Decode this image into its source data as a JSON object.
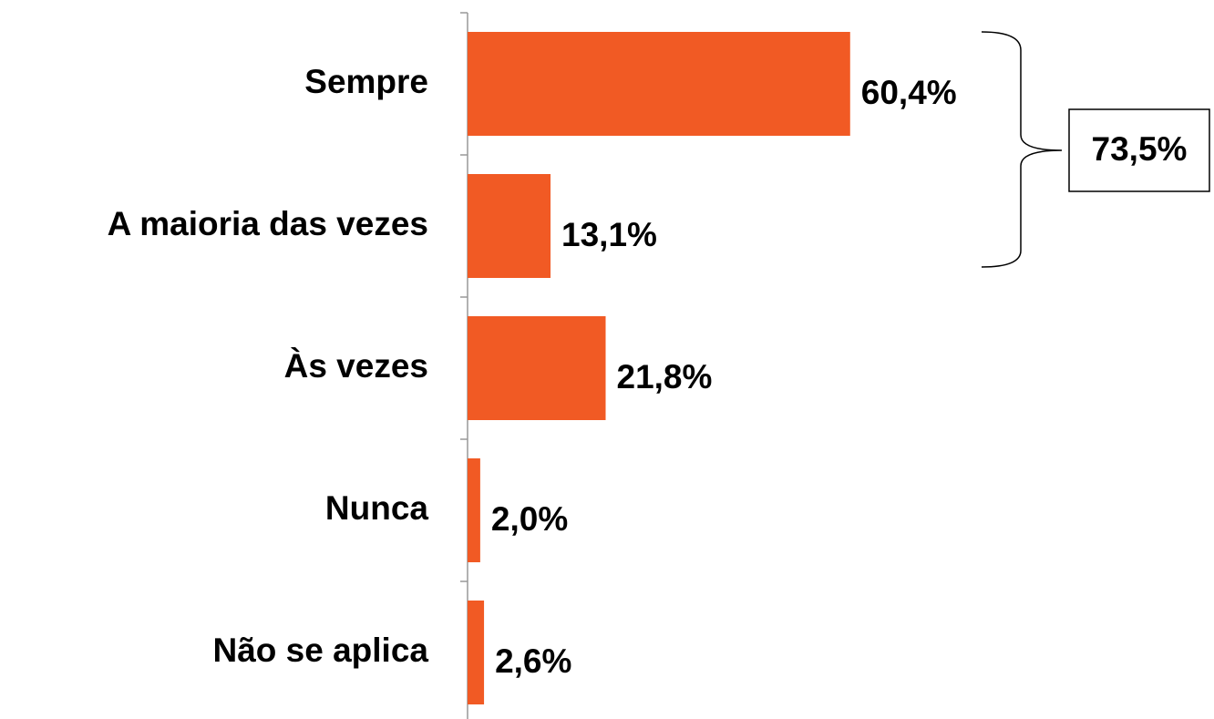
{
  "chart_data": {
    "type": "bar",
    "orientation": "horizontal",
    "categories": [
      "Sempre",
      "A maioria das vezes",
      "Às vezes",
      "Nunca",
      "Não se aplica"
    ],
    "values": [
      60.4,
      13.1,
      21.8,
      2.0,
      2.6
    ],
    "value_labels": [
      "60,4%",
      "13,1%",
      "21,8%",
      "2,0%",
      "2,6%"
    ],
    "color": "#f15a24",
    "xlim": [
      0,
      100
    ],
    "annotation": "73,5%"
  }
}
